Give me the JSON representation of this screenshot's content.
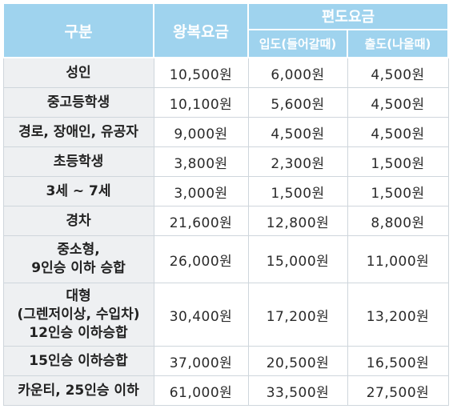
{
  "header": {
    "category": "구분",
    "round_trip": "왕복요금",
    "one_way": "편도요금",
    "inbound": "입도(들어갈때)",
    "outbound": "출도(나올때)"
  },
  "rows": [
    {
      "category": "성인",
      "round_trip": "10,500원",
      "inbound": "6,000원",
      "outbound": "4,500원"
    },
    {
      "category": "중고등학생",
      "round_trip": "10,100원",
      "inbound": "5,600원",
      "outbound": "4,500원"
    },
    {
      "category": "경로, 장애인, 유공자",
      "round_trip": "9,000원",
      "inbound": "4,500원",
      "outbound": "4,500원"
    },
    {
      "category": "초등학생",
      "round_trip": "3,800원",
      "inbound": "2,300원",
      "outbound": "1,500원"
    },
    {
      "category": "3세 ~ 7세",
      "round_trip": "3,000원",
      "inbound": "1,500원",
      "outbound": "1,500원"
    },
    {
      "category": "경차",
      "round_trip": "21,600원",
      "inbound": "12,800원",
      "outbound": "8,800원"
    },
    {
      "category": "중소형,\n9인승 이하 승합",
      "round_trip": "26,000원",
      "inbound": "15,000원",
      "outbound": "11,000원"
    },
    {
      "category": "대형\n(그렌저이상, 수입차)\n12인승 이하승합",
      "round_trip": "30,400원",
      "inbound": "17,200원",
      "outbound": "13,200원"
    },
    {
      "category": "15인승 이하승합",
      "round_trip": "37,000원",
      "inbound": "20,500원",
      "outbound": "16,500원"
    },
    {
      "category": "카운티, 25인승 이하",
      "round_trip": "61,000원",
      "inbound": "33,500원",
      "outbound": "27,500원"
    }
  ]
}
